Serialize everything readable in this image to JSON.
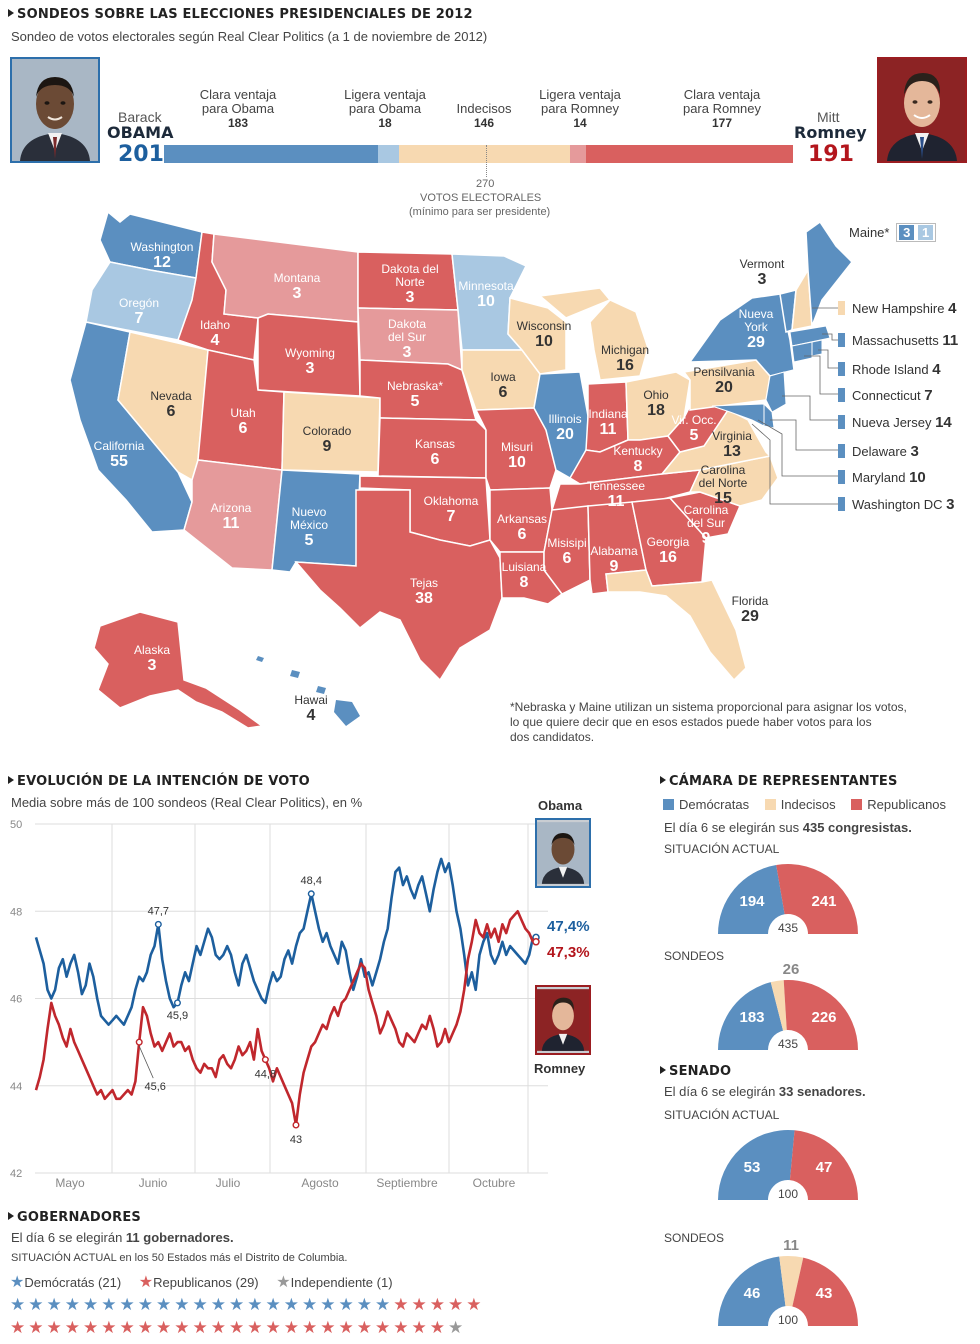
{
  "header": {
    "title": "SONDEOS  SOBRE LAS ELECCIONES PRESIDENCIALES DE 2012",
    "subtitle": "Sondeo de votos electorales según Real Clear Politics (a 1 de noviembre de 2012)"
  },
  "candidates": {
    "obama": {
      "first": "Barack",
      "last": "OBAMA",
      "votes": "201"
    },
    "romney": {
      "first": "Mitt",
      "last": "Romney",
      "votes": "191"
    }
  },
  "bar_categories": [
    {
      "label": "Clara ventaja para Obama",
      "line1": "Clara ventaja",
      "line2": "para Obama",
      "value": 183,
      "value_label": "183",
      "color": "#5b8fc0"
    },
    {
      "label": "Ligera ventaja para Obama",
      "line1": "Ligera ventaja",
      "line2": "para Obama",
      "value": 18,
      "value_label": "18",
      "color": "#a9c8e2"
    },
    {
      "label": "Indecisos",
      "line1": "Indecisos",
      "line2": "",
      "value": 146,
      "value_label": "146",
      "color": "#f7d9b1"
    },
    {
      "label": "Ligera ventaja para Romney",
      "line1": "Ligera ventaja",
      "line2": "para Romney",
      "value": 14,
      "value_label": "14",
      "color": "#e59a9b"
    },
    {
      "label": "Clara ventaja para Romney",
      "line1": "Clara ventaja",
      "line2": "para Romney",
      "value": 177,
      "value_label": "177",
      "color": "#d9605f"
    }
  ],
  "threshold": {
    "value": "270",
    "line1": "VOTOS ELECTORALES",
    "line2": "(mínimo para ser presidente)"
  },
  "colors": {
    "clear_dem": "#5b8fc0",
    "lean_dem": "#a9c8e2",
    "tossup": "#f7d9b1",
    "lean_rep": "#e59a9b",
    "clear_rep": "#d9605f",
    "obama_line": "#1d5f9e",
    "romney_line": "#c0272d",
    "obama_text": "#1d5f9e",
    "romney_text": "#b3151c"
  },
  "map_states": [
    {
      "name": "Washington",
      "votes": "12"
    },
    {
      "name": "Oregón",
      "votes": "7"
    },
    {
      "name": "California",
      "votes": "55"
    },
    {
      "name": "Nevada",
      "votes": "6"
    },
    {
      "name": "Idaho",
      "votes": "4"
    },
    {
      "name": "Montana",
      "votes": "3"
    },
    {
      "name": "Wyoming",
      "votes": "3"
    },
    {
      "name": "Utah",
      "votes": "6"
    },
    {
      "name": "Arizona",
      "votes": "11"
    },
    {
      "name": "Colorado",
      "votes": "9"
    },
    {
      "name": "Nuevo México",
      "votes": "5"
    },
    {
      "name": "Dakota del Norte",
      "votes": "3"
    },
    {
      "name": "Dakota del Sur",
      "votes": "3"
    },
    {
      "name": "Nebraska*",
      "votes": "5"
    },
    {
      "name": "Kansas",
      "votes": "6"
    },
    {
      "name": "Oklahoma",
      "votes": "7"
    },
    {
      "name": "Tejas",
      "votes": "38"
    },
    {
      "name": "Minnesota",
      "votes": "10"
    },
    {
      "name": "Iowa",
      "votes": "6"
    },
    {
      "name": "Misuri",
      "votes": "10"
    },
    {
      "name": "Arkansas",
      "votes": "6"
    },
    {
      "name": "Luisiana",
      "votes": "8"
    },
    {
      "name": "Wisconsin",
      "votes": "10"
    },
    {
      "name": "Illinois",
      "votes": "20"
    },
    {
      "name": "Michigan",
      "votes": "16"
    },
    {
      "name": "Indiana",
      "votes": "11"
    },
    {
      "name": "Ohio",
      "votes": "18"
    },
    {
      "name": "Kentucky",
      "votes": "8"
    },
    {
      "name": "Tennessee",
      "votes": "11"
    },
    {
      "name": "Misisipi",
      "votes": "6"
    },
    {
      "name": "Alabama",
      "votes": "9"
    },
    {
      "name": "Georgia",
      "votes": "16"
    },
    {
      "name": "Florida",
      "votes": "29"
    },
    {
      "name": "Carolina del Sur",
      "votes": "9"
    },
    {
      "name": "Carolina del Norte",
      "votes": "15"
    },
    {
      "name": "Virginia",
      "votes": "13"
    },
    {
      "name": "Vir. Occ.",
      "votes": "5"
    },
    {
      "name": "Pensilvania",
      "votes": "20"
    },
    {
      "name": "Nueva York",
      "votes": "29"
    },
    {
      "name": "Vermont",
      "votes": "3"
    },
    {
      "name": "Alaska",
      "votes": "3"
    },
    {
      "name": "Hawai",
      "votes": "4"
    }
  ],
  "maine": {
    "label": "Maine*",
    "v1": "3",
    "v2": "1"
  },
  "northeast_list": [
    {
      "name": "New Hampshire",
      "votes": "4",
      "color": "#f7d9b1"
    },
    {
      "name": "Massachusetts",
      "votes": "11",
      "color": "#5b8fc0"
    },
    {
      "name": "Rhode Island",
      "votes": "4",
      "color": "#5b8fc0"
    },
    {
      "name": "Connecticut",
      "votes": "7",
      "color": "#5b8fc0"
    },
    {
      "name": "Nueva Jersey",
      "votes": "14",
      "color": "#5b8fc0"
    },
    {
      "name": "Delaware",
      "votes": "3",
      "color": "#5b8fc0"
    },
    {
      "name": "Maryland",
      "votes": "10",
      "color": "#5b8fc0"
    },
    {
      "name": "Washington DC",
      "votes": "3",
      "color": "#5b8fc0"
    }
  ],
  "map_note": {
    "line1": "*Nebraska y Maine utilizan un sistema proporcional para asignar los votos,",
    "line2": "lo que quiere decir que en esos estados puede haber votos para los",
    "line3": "dos candidatos."
  },
  "evolution": {
    "title": "EVOLUCIÓN DE LA INTENCIÓN DE VOTO",
    "subtitle": "Media sobre más de 100 sondeos (Real Clear Politics), en %",
    "obama_label": "Obama",
    "romney_label": "Romney",
    "obama_final": "47,4%",
    "romney_final": "47,3%"
  },
  "chart_data": {
    "type": "line",
    "title": "EVOLUCIÓN DE LA INTENCIÓN DE VOTO",
    "ylim": [
      42,
      50
    ],
    "yticks": [
      "42",
      "44",
      "46",
      "48",
      "50"
    ],
    "months": [
      "Mayo",
      "Junio",
      "Julio",
      "Agosto",
      "Septiembre",
      "Octubre"
    ],
    "series": [
      {
        "name": "Obama",
        "color": "#1d5f9e",
        "values": [
          47.4,
          47.1,
          46.8,
          46.2,
          46.0,
          46.2,
          46.7,
          46.9,
          46.5,
          46.8,
          47.0,
          46.6,
          46.1,
          46.3,
          46.8,
          46.5,
          46.0,
          45.6,
          45.5,
          45.4,
          45.5,
          45.6,
          45.5,
          45.4,
          45.6,
          45.8,
          46.2,
          46.5,
          46.4,
          46.6,
          47.0,
          47.2,
          47.7,
          46.9,
          46.4,
          46.0,
          45.8,
          45.9,
          46.3,
          46.6,
          46.4,
          46.8,
          47.2,
          47.0,
          47.3,
          47.6,
          47.4,
          47.0,
          46.9,
          47.0,
          47.2,
          47.0,
          46.6,
          46.3,
          46.8,
          47.0,
          46.7,
          46.4,
          46.2,
          46.0,
          45.9,
          46.3,
          46.6,
          46.4,
          46.5,
          46.9,
          47.1,
          46.8,
          47.2,
          47.5,
          47.6,
          48.0,
          48.4,
          48.0,
          47.6,
          47.3,
          47.5,
          47.2,
          47.0,
          46.8,
          47.3,
          47.1,
          46.6,
          46.2,
          46.5,
          46.9,
          46.5,
          46.6,
          46.3,
          46.6,
          46.9,
          47.3,
          47.6,
          48.3,
          48.9,
          49.0,
          48.6,
          48.8,
          48.5,
          48.3,
          48.6,
          48.8,
          48.4,
          48.0,
          48.5,
          48.9,
          49.2,
          48.9,
          49.1,
          48.6,
          48.0,
          47.6,
          47.0,
          46.3,
          46.6,
          46.2,
          47.0,
          47.3,
          47.5,
          47.0,
          46.8,
          47.0,
          47.3,
          47.0,
          47.2,
          47.1,
          47.0,
          46.9,
          46.8,
          47.0,
          47.4
        ]
      },
      {
        "name": "Romney",
        "color": "#c0272d",
        "values": [
          43.9,
          44.2,
          44.6,
          45.3,
          45.9,
          45.6,
          45.4,
          45.1,
          44.9,
          45.3,
          45.0,
          44.8,
          44.6,
          44.4,
          44.2,
          44.0,
          43.8,
          43.9,
          43.7,
          43.8,
          43.9,
          43.7,
          43.7,
          43.8,
          43.9,
          43.8,
          44.1,
          45.0,
          45.8,
          45.6,
          45.2,
          44.9,
          45.0,
          44.8,
          45.0,
          45.2,
          44.9,
          45.0,
          45.0,
          44.8,
          44.9,
          44.6,
          44.4,
          44.3,
          44.5,
          44.4,
          44.4,
          44.2,
          44.6,
          44.7,
          44.5,
          44.4,
          44.6,
          44.9,
          44.7,
          44.8,
          45.0,
          44.6,
          45.3,
          44.8,
          44.6,
          44.4,
          44.1,
          44.4,
          44.2,
          44.0,
          43.8,
          43.6,
          43.1,
          43.8,
          44.3,
          44.6,
          44.9,
          45.0,
          45.2,
          45.4,
          45.3,
          45.6,
          45.8,
          45.6,
          45.9,
          46.0,
          46.2,
          46.4,
          46.6,
          46.8,
          46.7,
          46.2,
          45.9,
          45.6,
          45.2,
          45.4,
          45.7,
          45.5,
          45.3,
          45.0,
          44.9,
          45.2,
          45.1,
          45.0,
          45.2,
          45.4,
          45.3,
          45.6,
          45.3,
          44.9,
          45.0,
          45.3,
          45.0,
          45.2,
          45.4,
          45.7,
          46.2,
          46.9,
          47.3,
          47.8,
          47.5,
          47.4,
          47.7,
          47.4,
          47.6,
          47.3,
          47.7,
          47.5,
          47.8,
          47.9,
          48.0,
          47.8,
          47.6,
          47.5,
          47.3
        ]
      }
    ],
    "annotations": [
      "47,7",
      "48,4",
      "45,9",
      "45,6",
      "44,8",
      "43"
    ]
  },
  "house": {
    "title": "CÁMARA DE REPRESENTANTES",
    "legend": {
      "dem": "Demócratas",
      "undecided": "Indecisos",
      "rep": "Republicanos"
    },
    "note_prefix": "El día 6 se elegirán sus ",
    "note_bold": "435 congresistas.",
    "current_label": "SITUACIÓN ACTUAL",
    "polls_label": "SONDEOS",
    "current": {
      "dem": 194,
      "undecided": 0,
      "rep": 241,
      "total": "435"
    },
    "polls": {
      "dem": 183,
      "undecided": 26,
      "rep": 226,
      "total": "435"
    }
  },
  "senate": {
    "title": "SENADO",
    "note_prefix": "El día 6 se elegirán ",
    "note_bold": "33 senadores.",
    "current_label": "SITUACIÓN ACTUAL",
    "polls_label": "SONDEOS",
    "current": {
      "dem": 53,
      "undecided": 0,
      "rep": 47,
      "total": "100"
    },
    "polls": {
      "dem": 46,
      "undecided": 11,
      "rep": 43,
      "total": "100"
    }
  },
  "governors": {
    "title": "GOBERNADORES",
    "note_prefix": "El día 6 se elegirán ",
    "note_bold": "11 gobernadores.",
    "situation": "SITUACIÓN ACTUAL en los 50 Estados más el Distrito de Columbia.",
    "legend": [
      {
        "label": "Demócratás (21)",
        "count": 21,
        "color": "#5b8fc0"
      },
      {
        "label": "Republicanos (29)",
        "count": 29,
        "color": "#d9605f"
      },
      {
        "label": "Independiente (1)",
        "count": 1,
        "color": "#999999"
      }
    ]
  }
}
